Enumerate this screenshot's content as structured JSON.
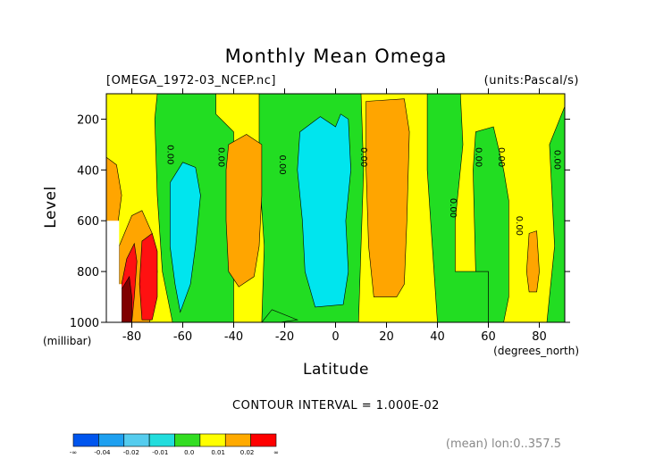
{
  "chart_data": {
    "type": "heatmap",
    "title": "Monthly Mean Omega",
    "file_label": "[OMEGA_1972-03_NCEP.nc]",
    "units_label": "(units:Pascal/s)",
    "xlabel": "Latitude",
    "xunit": "(degrees_north)",
    "ylabel": "Level",
    "yunit": "(millibar)",
    "xlim": [
      -90,
      90
    ],
    "ylim": [
      1000,
      100
    ],
    "x_ticks": [
      -80,
      -60,
      -40,
      -20,
      0,
      20,
      40,
      60,
      80
    ],
    "x_tick_labels": [
      "-80",
      "-60",
      "-40",
      "-20",
      "0",
      "20",
      "40",
      "60",
      "80"
    ],
    "y_ticks": [
      200,
      400,
      600,
      800,
      1000
    ],
    "y_tick_labels": [
      "200",
      "400",
      "600",
      "800",
      "1000"
    ],
    "contour_interval": "CONTOUR INTERVAL = 1.000E-02",
    "footer": "(mean) lon:0..357.5",
    "contour_label_text": "0.00",
    "contour_labels": [
      {
        "lat": -66,
        "level": 340
      },
      {
        "lat": -46,
        "level": 350
      },
      {
        "lat": -22,
        "level": 380
      },
      {
        "lat": 10,
        "level": 350
      },
      {
        "lat": 45,
        "level": 550
      },
      {
        "lat": 55,
        "level": 350
      },
      {
        "lat": 64,
        "level": 350
      },
      {
        "lat": 71,
        "level": 620
      },
      {
        "lat": 86,
        "level": 360
      }
    ],
    "colorbar": {
      "colors": [
        "#0055ee",
        "#1ea0f0",
        "#55ccee",
        "#22dddd",
        "#33dd22",
        "#ffff00",
        "#ffaa00",
        "#ff0000"
      ],
      "labels": [
        "-∞",
        "-0.04",
        "-0.02",
        "-0.01",
        "0.0",
        "0.01",
        "0.02",
        "∞"
      ]
    },
    "fields": {
      "background": "#ffff00",
      "colors": {
        "orange": "#ffa500",
        "green": "#22dd22",
        "cyan": "#00e5ee",
        "red": "#ff1111",
        "darkred": "#800000",
        "missing": "#ffffff"
      },
      "regions": [
        {
          "color": "green",
          "poly": [
            [
              -70,
              100
            ],
            [
              -47,
              100
            ],
            [
              -47,
              180
            ],
            [
              -40,
              250
            ],
            [
              -40,
              1000
            ],
            [
              -64,
              1000
            ],
            [
              -68,
              800
            ],
            [
              -70,
              500
            ],
            [
              -71,
              200
            ]
          ]
        },
        {
          "color": "green",
          "poly": [
            [
              -30,
              100
            ],
            [
              10,
              100
            ],
            [
              11,
              400
            ],
            [
              10,
              700
            ],
            [
              9,
              1000
            ],
            [
              -29,
              1000
            ],
            [
              -28,
              700
            ],
            [
              -30,
              400
            ]
          ]
        },
        {
          "color": "green",
          "poly": [
            [
              36,
              100
            ],
            [
              49,
              100
            ],
            [
              50,
              300
            ],
            [
              47,
              600
            ],
            [
              47,
              800
            ],
            [
              60,
              800
            ],
            [
              60,
              1000
            ],
            [
              40,
              1000
            ],
            [
              38,
              700
            ],
            [
              36,
              400
            ]
          ]
        },
        {
          "color": "green",
          "poly": [
            [
              55,
              250
            ],
            [
              62,
              230
            ],
            [
              66,
              400
            ],
            [
              68,
              520
            ],
            [
              68,
              900
            ],
            [
              66,
              1000
            ],
            [
              60,
              1000
            ],
            [
              60,
              800
            ],
            [
              55,
              800
            ],
            [
              54,
              400
            ]
          ]
        },
        {
          "color": "green",
          "poly": [
            [
              84,
              300
            ],
            [
              90,
              150
            ],
            [
              90,
              1000
            ],
            [
              83,
              1000
            ],
            [
              86,
              700
            ],
            [
              85,
              500
            ]
          ]
        },
        {
          "color": "green",
          "poly": [
            [
              -25,
              950
            ],
            [
              -15,
              990
            ],
            [
              -22,
              1000
            ],
            [
              -29,
              1000
            ]
          ]
        },
        {
          "color": "cyan",
          "poly": [
            [
              -65,
              450
            ],
            [
              -60,
              370
            ],
            [
              -55,
              390
            ],
            [
              -53,
              500
            ],
            [
              -55,
              700
            ],
            [
              -57,
              850
            ],
            [
              -61,
              960
            ],
            [
              -63,
              850
            ],
            [
              -65,
              700
            ]
          ]
        },
        {
          "color": "cyan",
          "poly": [
            [
              -14,
              250
            ],
            [
              -6,
              190
            ],
            [
              0,
              230
            ],
            [
              2,
              180
            ],
            [
              5,
              200
            ],
            [
              6,
              400
            ],
            [
              4,
              600
            ],
            [
              5,
              800
            ],
            [
              3,
              930
            ],
            [
              -8,
              940
            ],
            [
              -12,
              800
            ],
            [
              -13,
              600
            ],
            [
              -15,
              400
            ]
          ]
        },
        {
          "color": "orange",
          "poly": [
            [
              -42,
              300
            ],
            [
              -35,
              260
            ],
            [
              -29,
              300
            ],
            [
              -29,
              500
            ],
            [
              -30,
              700
            ],
            [
              -32,
              820
            ],
            [
              -38,
              860
            ],
            [
              -42,
              800
            ],
            [
              -43,
              600
            ],
            [
              -43,
              400
            ]
          ]
        },
        {
          "color": "orange",
          "poly": [
            [
              12,
              130
            ],
            [
              27,
              120
            ],
            [
              29,
              250
            ],
            [
              28,
              600
            ],
            [
              27,
              850
            ],
            [
              24,
              900
            ],
            [
              15,
              900
            ],
            [
              13,
              700
            ],
            [
              12,
              400
            ]
          ]
        },
        {
          "color": "orange",
          "poly": [
            [
              -90,
              350
            ],
            [
              -86,
              380
            ],
            [
              -84,
              500
            ],
            [
              -86,
              650
            ],
            [
              -88,
              750
            ],
            [
              -90,
              750
            ]
          ]
        },
        {
          "color": "orange",
          "poly": [
            [
              -85,
              700
            ],
            [
              -80,
              580
            ],
            [
              -76,
              560
            ],
            [
              -72,
              650
            ],
            [
              -70,
              800
            ],
            [
              -72,
              950
            ],
            [
              -73,
              1000
            ],
            [
              -85,
              1000
            ]
          ]
        },
        {
          "color": "orange",
          "poly": [
            [
              76,
              650
            ],
            [
              79,
              640
            ],
            [
              80,
              800
            ],
            [
              79,
              880
            ],
            [
              76,
              880
            ],
            [
              75,
              800
            ]
          ]
        },
        {
          "color": "red",
          "poly": [
            [
              -82,
              750
            ],
            [
              -79,
              690
            ],
            [
              -78,
              760
            ],
            [
              -79,
              900
            ],
            [
              -80,
              1000
            ],
            [
              -84,
              1000
            ],
            [
              -84,
              850
            ]
          ]
        },
        {
          "color": "red",
          "poly": [
            [
              -76,
              680
            ],
            [
              -72,
              650
            ],
            [
              -70,
              720
            ],
            [
              -70,
              900
            ],
            [
              -72,
              990
            ],
            [
              -76,
              990
            ],
            [
              -77,
              850
            ]
          ]
        },
        {
          "color": "darkred",
          "poly": [
            [
              -84,
              870
            ],
            [
              -81,
              820
            ],
            [
              -80,
              900
            ],
            [
              -80,
              1000
            ],
            [
              -84,
              1000
            ]
          ]
        },
        {
          "color": "missing",
          "poly": [
            [
              -90,
              600
            ],
            [
              -85,
              600
            ],
            [
              -85,
              850
            ],
            [
              -84,
              850
            ],
            [
              -84,
              1000
            ],
            [
              -90,
              1000
            ]
          ]
        }
      ]
    }
  }
}
